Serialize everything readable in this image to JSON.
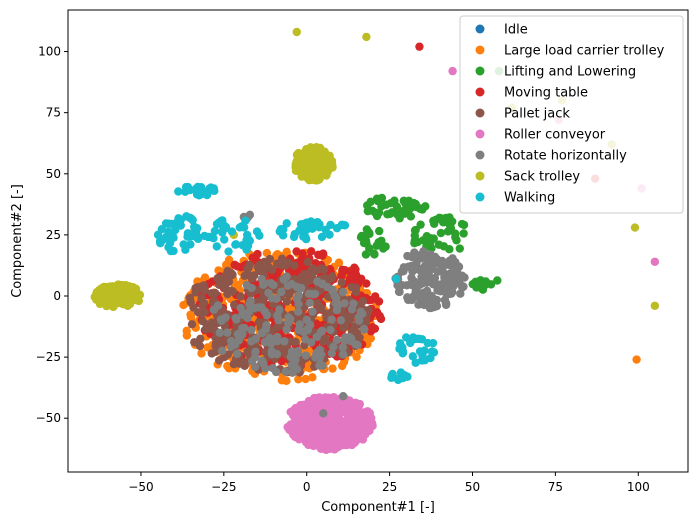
{
  "chart_data": {
    "type": "scatter",
    "title": "",
    "xlabel": "Component#1 [-]",
    "ylabel": "Component#2 [-]",
    "xlim": [
      -72,
      115
    ],
    "ylim": [
      -72,
      117
    ],
    "xticks": [
      -50,
      -25,
      0,
      25,
      50,
      75,
      100
    ],
    "yticks": [
      -50,
      -25,
      0,
      25,
      50,
      75,
      100
    ],
    "grid": false,
    "legend_position": "top-right",
    "series": [
      {
        "name": "Idle",
        "color": "#1f77b4",
        "clusters": [
          {
            "cx": -7,
            "cy": -8,
            "rx": 2,
            "ry": 2,
            "n": 6
          },
          {
            "cx": 5,
            "cy": 0,
            "rx": 2,
            "ry": 2,
            "n": 6
          },
          {
            "cx": -10,
            "cy": -20,
            "rx": 2,
            "ry": 2,
            "n": 4
          }
        ],
        "points": []
      },
      {
        "name": "Large load carrier trolley",
        "color": "#ff7f0e",
        "clusters": [
          {
            "cx": -8,
            "cy": -8,
            "rx": 30,
            "ry": 27,
            "n": 420
          }
        ],
        "points": [
          [
            99.5,
            -26
          ]
        ]
      },
      {
        "name": "Lifting and Lowering",
        "color": "#2ca02c",
        "clusters": [
          {
            "cx": 27,
            "cy": 36,
            "rx": 9,
            "ry": 5,
            "n": 40
          },
          {
            "cx": 20,
            "cy": 22,
            "rx": 4,
            "ry": 6,
            "n": 20
          },
          {
            "cx": 40,
            "cy": 25,
            "rx": 9,
            "ry": 8,
            "n": 40
          },
          {
            "cx": 54,
            "cy": 5,
            "rx": 4,
            "ry": 3,
            "n": 12
          }
        ],
        "points": [
          [
            58,
            92
          ]
        ]
      },
      {
        "name": "Moving table",
        "color": "#d62728",
        "clusters": [
          {
            "cx": -5,
            "cy": -5,
            "rx": 28,
            "ry": 24,
            "n": 360
          }
        ],
        "points": [
          [
            34,
            102
          ],
          [
            87,
            48
          ]
        ]
      },
      {
        "name": "Pallet jack",
        "color": "#8c564b",
        "clusters": [
          {
            "cx": -9,
            "cy": -8,
            "rx": 28,
            "ry": 24,
            "n": 320
          }
        ],
        "points": []
      },
      {
        "name": "Roller conveyor",
        "color": "#e377c2",
        "clusters": [
          {
            "cx": 7,
            "cy": -52,
            "rx": 13,
            "ry": 11,
            "n": 460
          }
        ],
        "points": [
          [
            44,
            92
          ],
          [
            76,
            72
          ],
          [
            101,
            44
          ],
          [
            105,
            14
          ]
        ]
      },
      {
        "name": "Rotate horizontally",
        "color": "#7f7f7f",
        "clusters": [
          {
            "cx": 37,
            "cy": 7,
            "rx": 11,
            "ry": 12,
            "n": 160
          },
          {
            "cx": -18,
            "cy": 32,
            "rx": 1.5,
            "ry": 1.5,
            "n": 5
          },
          {
            "cx": -6,
            "cy": -12,
            "rx": 24,
            "ry": 20,
            "n": 160
          }
        ],
        "points": [
          [
            5,
            -48
          ],
          [
            11,
            -41
          ]
        ]
      },
      {
        "name": "Sack trolley",
        "color": "#bcbd22",
        "clusters": [
          {
            "cx": -57,
            "cy": 0,
            "rx": 7,
            "ry": 5,
            "n": 110
          },
          {
            "cx": 2,
            "cy": 54,
            "rx": 6,
            "ry": 7,
            "n": 150
          }
        ],
        "points": [
          [
            -3,
            108
          ],
          [
            18,
            106
          ],
          [
            -22,
            25
          ],
          [
            62,
            77
          ],
          [
            92,
            62
          ],
          [
            99,
            28
          ],
          [
            105,
            -4
          ],
          [
            77,
            80
          ]
        ]
      },
      {
        "name": "Walking",
        "color": "#17becf",
        "clusters": [
          {
            "cx": -33,
            "cy": 43,
            "rx": 6,
            "ry": 2,
            "n": 20
          },
          {
            "cx": -38,
            "cy": 25,
            "rx": 7,
            "ry": 8,
            "n": 40
          },
          {
            "cx": -22,
            "cy": 25,
            "rx": 9,
            "ry": 7,
            "n": 35
          },
          {
            "cx": 2,
            "cy": 27,
            "rx": 11,
            "ry": 4,
            "n": 30
          },
          {
            "cx": 33,
            "cy": -22,
            "rx": 6,
            "ry": 6,
            "n": 25
          },
          {
            "cx": 28,
            "cy": -33,
            "rx": 3,
            "ry": 2,
            "n": 10
          }
        ],
        "points": [
          [
            27,
            7
          ]
        ]
      }
    ]
  }
}
